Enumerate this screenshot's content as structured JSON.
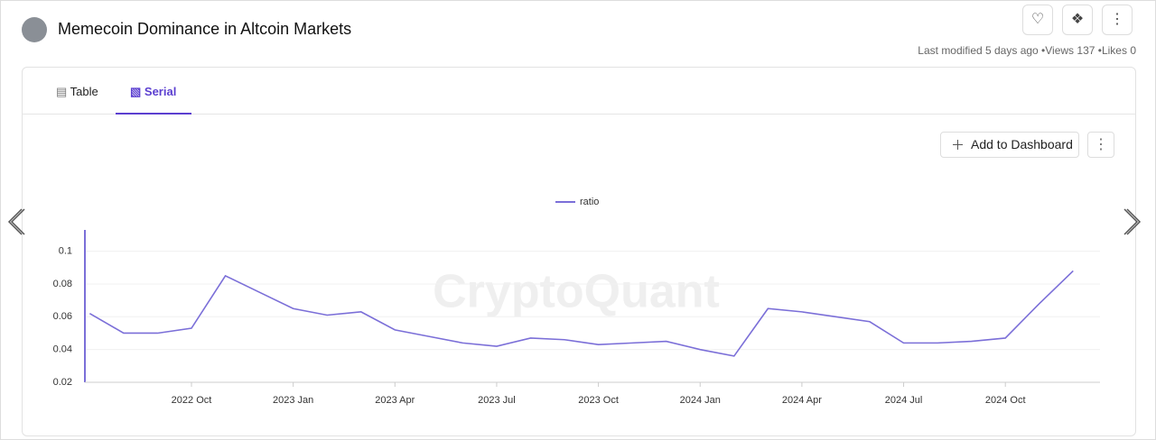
{
  "header": {
    "title": "Memecoin Dominance in Altcoin Markets",
    "meta": [
      "Last modified 5 days ago",
      "Views 137",
      "Likes 0"
    ]
  },
  "tabs": [
    "Table",
    "Serial"
  ],
  "actions": {
    "add": "Add to Dashboard"
  },
  "watermark": "CryptoQuant",
  "chart_data": {
    "type": "line",
    "x": [
      "2022-07",
      "2022-08",
      "2022-09",
      "2022-10",
      "2022-11",
      "2022-12",
      "2023-01",
      "2023-02",
      "2023-03",
      "2023-04",
      "2023-05",
      "2023-06",
      "2023-07",
      "2023-08",
      "2023-09",
      "2023-10",
      "2023-11",
      "2023-12",
      "2024-01",
      "2024-02",
      "2024-03",
      "2024-04",
      "2024-05",
      "2024-06",
      "2024-07",
      "2024-08",
      "2024-09",
      "2024-10",
      "2024-11",
      "2024-12"
    ],
    "series": [
      {
        "name": "ratio",
        "color": "#7b6fd8",
        "values": [
          0.062,
          0.05,
          0.05,
          0.053,
          0.085,
          0.075,
          0.065,
          0.061,
          0.063,
          0.052,
          0.048,
          0.044,
          0.042,
          0.047,
          0.046,
          0.043,
          0.044,
          0.045,
          0.04,
          0.036,
          0.065,
          0.063,
          0.06,
          0.057,
          0.044,
          0.044,
          0.045,
          0.047,
          0.068,
          0.088
        ]
      }
    ],
    "xticks": [
      {
        "value": "2022-10",
        "label": "2022 Oct"
      },
      {
        "value": "2023-01",
        "label": "2023 Jan"
      },
      {
        "value": "2023-04",
        "label": "2023 Apr"
      },
      {
        "value": "2023-07",
        "label": "2023 Jul"
      },
      {
        "value": "2023-10",
        "label": "2023 Oct"
      },
      {
        "value": "2024-01",
        "label": "2024 Jan"
      },
      {
        "value": "2024-04",
        "label": "2024 Apr"
      },
      {
        "value": "2024-07",
        "label": "2024 Jul"
      },
      {
        "value": "2024-10",
        "label": "2024 Oct"
      }
    ],
    "ylim": [
      0.02,
      0.113
    ],
    "yticks": [
      0.02,
      0.04,
      0.06,
      0.08,
      0.1
    ],
    "grid": true
  }
}
